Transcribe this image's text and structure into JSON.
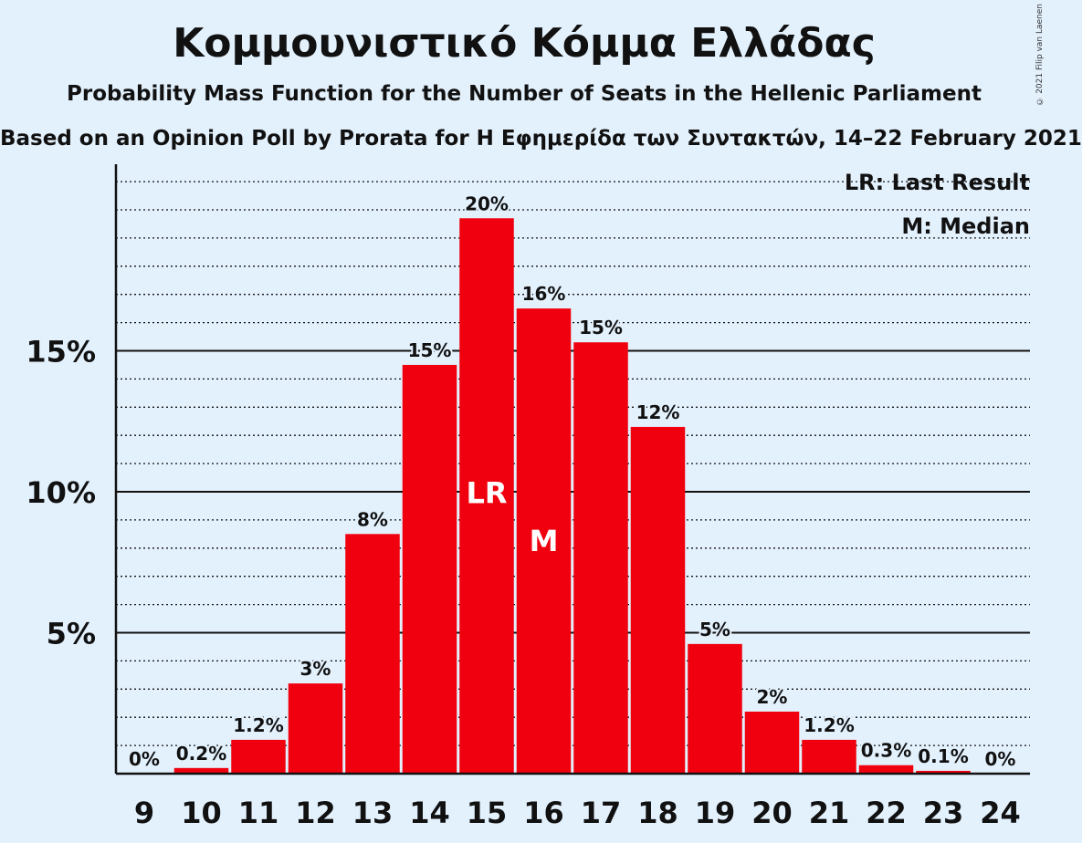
{
  "title": "Κομμουνιστικό Κόμμα Ελλάδας",
  "subtitle": "Probability Mass Function for the Number of Seats in the Hellenic Parliament",
  "subtitle2": "Based on an Opinion Poll by Prorata for Η Εφημερίδα των Συντακτών, 14–22 February 2021",
  "copyright": "© 2021 Filip van Laenen",
  "legend": {
    "last_result": "LR: Last Result",
    "median": "M: Median"
  },
  "colors": {
    "bar": "#f0000e",
    "background": "#e3f1fd"
  },
  "chart_data": {
    "type": "bar",
    "categories": [
      "9",
      "10",
      "11",
      "12",
      "13",
      "14",
      "15",
      "16",
      "17",
      "18",
      "19",
      "20",
      "21",
      "22",
      "23",
      "24"
    ],
    "values": [
      0,
      0.2,
      1.2,
      3.2,
      8.5,
      14.5,
      19.7,
      16.5,
      15.3,
      12.3,
      4.6,
      2.2,
      1.2,
      0.3,
      0.1,
      0
    ],
    "value_labels": [
      "0%",
      "0.2%",
      "1.2%",
      "3%",
      "8%",
      "15%",
      "20%",
      "16%",
      "15%",
      "12%",
      "5%",
      "2%",
      "1.2%",
      "0.3%",
      "0.1%",
      "0%"
    ],
    "ylim": [
      0,
      21.5
    ],
    "yticks": [
      5,
      10,
      15
    ],
    "ytick_labels": [
      "5%",
      "10%",
      "15%"
    ],
    "minor_grid_step": 1,
    "last_result_category": "15",
    "median_category": "16",
    "last_result_marker": "LR",
    "median_marker": "M"
  }
}
